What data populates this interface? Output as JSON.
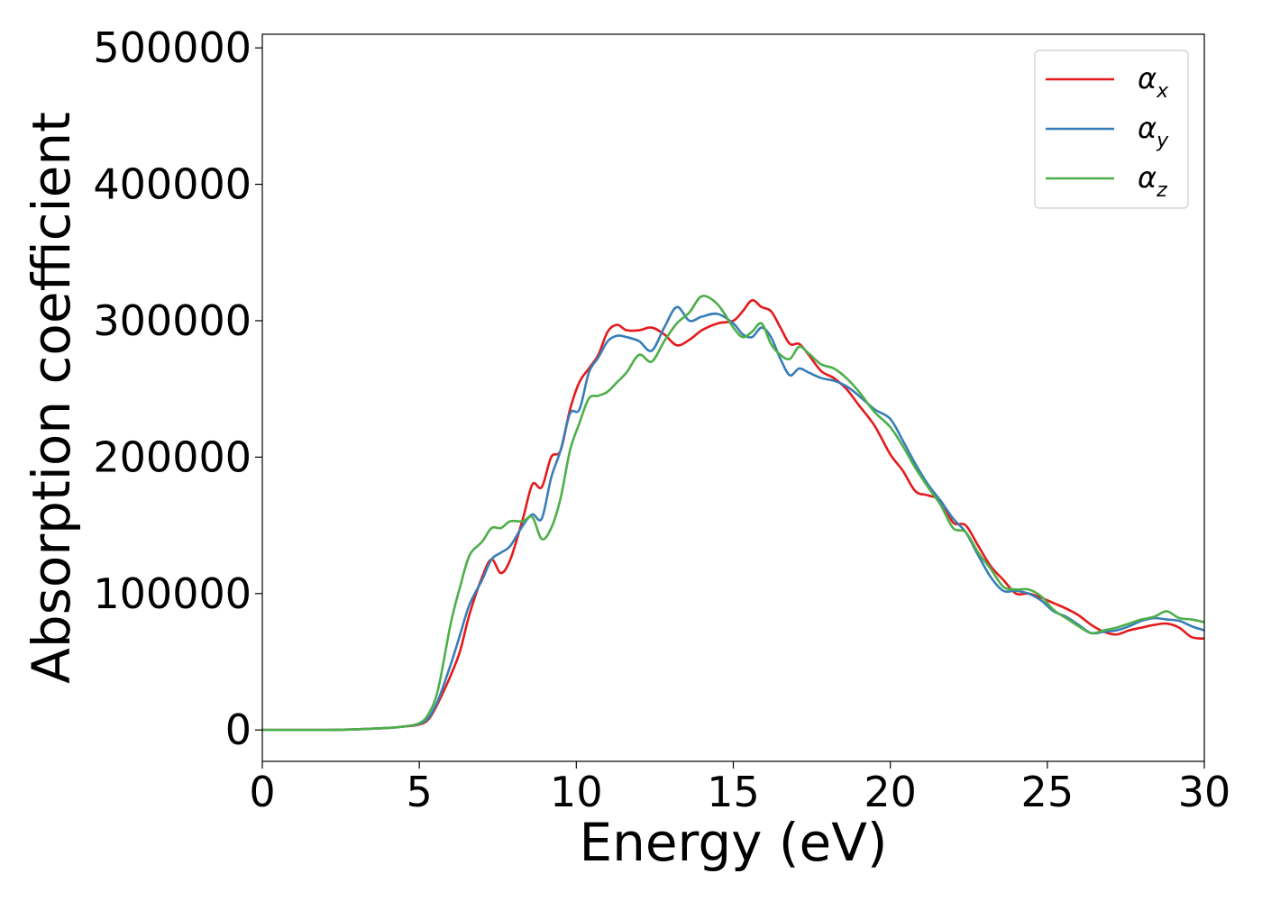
{
  "chart_data": {
    "type": "line",
    "xlabel": "Energy (eV)",
    "ylabel": "Absorption coefficient",
    "xlim": [
      0,
      30
    ],
    "ylim": [
      -23000,
      510000
    ],
    "x_ticks": [
      "0",
      "5",
      "10",
      "15",
      "20",
      "25",
      "30"
    ],
    "y_ticks": [
      "0",
      "100000",
      "200000",
      "300000",
      "400000",
      "500000"
    ],
    "grid": false,
    "legend_position": "top-right",
    "series": [
      {
        "name": "α_x",
        "symbol": "α",
        "subscript": "x",
        "color": "#e41a1c",
        "x": [
          0,
          1,
          2,
          3,
          4,
          4.5,
          5,
          5.3,
          5.6,
          6,
          6.3,
          6.6,
          7,
          7.3,
          7.6,
          7.9,
          8.3,
          8.6,
          8.9,
          9.2,
          9.5,
          9.8,
          10.1,
          10.4,
          10.7,
          11,
          11.3,
          11.6,
          12,
          12.4,
          12.8,
          13.2,
          13.6,
          14,
          14.5,
          15,
          15.3,
          15.6,
          15.9,
          16.2,
          16.5,
          16.8,
          17.1,
          17.4,
          17.8,
          18.2,
          18.6,
          19,
          19.5,
          20,
          20.4,
          20.8,
          21.2,
          21.6,
          22,
          22.4,
          22.8,
          23.2,
          23.6,
          24,
          24.4,
          24.8,
          25.2,
          25.6,
          26,
          26.4,
          26.8,
          27.2,
          27.6,
          28,
          28.4,
          28.8,
          29.2,
          29.6,
          30
        ],
        "y": [
          0,
          0,
          0,
          500,
          1500,
          2500,
          4000,
          8000,
          20000,
          40000,
          58000,
          85000,
          112000,
          125000,
          115000,
          125000,
          155000,
          180000,
          178000,
          200000,
          205000,
          235000,
          255000,
          265000,
          275000,
          292000,
          297000,
          293000,
          293000,
          295000,
          290000,
          282000,
          286000,
          293000,
          298000,
          300000,
          307000,
          315000,
          310000,
          307000,
          295000,
          283000,
          283000,
          275000,
          263000,
          258000,
          250000,
          238000,
          223000,
          202000,
          190000,
          175000,
          172000,
          168000,
          152000,
          150000,
          135000,
          120000,
          110000,
          100000,
          100000,
          97000,
          93000,
          89000,
          84000,
          77000,
          72000,
          70000,
          73000,
          75000,
          77000,
          78000,
          75000,
          68000,
          67000
        ]
      },
      {
        "name": "α_y",
        "symbol": "α",
        "subscript": "y",
        "color": "#377eb8",
        "x": [
          0,
          1,
          2,
          3,
          4,
          4.5,
          5,
          5.3,
          5.6,
          6,
          6.3,
          6.6,
          7,
          7.3,
          7.6,
          7.9,
          8.3,
          8.6,
          8.9,
          9.2,
          9.5,
          9.8,
          10.1,
          10.4,
          10.7,
          11,
          11.3,
          11.6,
          12,
          12.4,
          12.8,
          13.2,
          13.6,
          14,
          14.5,
          15,
          15.3,
          15.6,
          15.9,
          16.2,
          16.5,
          16.8,
          17.1,
          17.4,
          17.8,
          18.2,
          18.6,
          19,
          19.5,
          20,
          20.4,
          20.8,
          21.2,
          21.6,
          22,
          22.4,
          22.8,
          23.2,
          23.6,
          24,
          24.4,
          24.8,
          25.2,
          25.6,
          26,
          26.4,
          26.8,
          27.2,
          27.6,
          28,
          28.4,
          28.8,
          29.2,
          29.6,
          30
        ],
        "y": [
          0,
          0,
          0,
          500,
          1500,
          2500,
          4500,
          9000,
          22000,
          48000,
          70000,
          92000,
          110000,
          125000,
          130000,
          135000,
          150000,
          158000,
          155000,
          185000,
          205000,
          232000,
          235000,
          262000,
          273000,
          285000,
          289000,
          288000,
          285000,
          278000,
          295000,
          310000,
          300000,
          303000,
          305000,
          298000,
          290000,
          288000,
          295000,
          288000,
          272000,
          260000,
          265000,
          262000,
          258000,
          256000,
          252000,
          245000,
          235000,
          228000,
          212000,
          195000,
          180000,
          168000,
          155000,
          145000,
          128000,
          112000,
          102000,
          102000,
          100000,
          95000,
          87000,
          83000,
          77000,
          71000,
          72000,
          73000,
          76000,
          80000,
          82000,
          81000,
          80000,
          76000,
          73000
        ]
      },
      {
        "name": "α_z",
        "symbol": "α",
        "subscript": "z",
        "color": "#4daf4a",
        "x": [
          0,
          1,
          2,
          3,
          4,
          4.5,
          5,
          5.3,
          5.6,
          6,
          6.3,
          6.6,
          7,
          7.3,
          7.6,
          7.9,
          8.3,
          8.6,
          8.9,
          9.2,
          9.5,
          9.8,
          10.1,
          10.4,
          10.7,
          11,
          11.3,
          11.6,
          12,
          12.4,
          12.8,
          13.2,
          13.6,
          14,
          14.5,
          15,
          15.3,
          15.6,
          15.9,
          16.2,
          16.5,
          16.8,
          17.1,
          17.4,
          17.8,
          18.2,
          18.6,
          19,
          19.5,
          20,
          20.4,
          20.8,
          21.2,
          21.6,
          22,
          22.4,
          22.8,
          23.2,
          23.6,
          24,
          24.4,
          24.8,
          25.2,
          25.6,
          26,
          26.4,
          26.8,
          27.2,
          27.6,
          28,
          28.4,
          28.8,
          29.2,
          29.6,
          30
        ],
        "y": [
          0,
          0,
          0,
          500,
          1500,
          2500,
          5000,
          12000,
          30000,
          78000,
          105000,
          128000,
          138000,
          148000,
          148000,
          153000,
          153000,
          156000,
          140000,
          148000,
          170000,
          205000,
          225000,
          243000,
          245000,
          248000,
          255000,
          262000,
          275000,
          270000,
          285000,
          298000,
          306000,
          318000,
          312000,
          295000,
          288000,
          292000,
          298000,
          283000,
          275000,
          272000,
          281000,
          276000,
          268000,
          265000,
          258000,
          248000,
          233000,
          222000,
          208000,
          192000,
          178000,
          165000,
          148000,
          145000,
          130000,
          118000,
          105000,
          103000,
          103000,
          98000,
          88000,
          82000,
          76000,
          71000,
          73000,
          75000,
          78000,
          81000,
          83000,
          87000,
          82000,
          81000,
          79000
        ]
      }
    ]
  }
}
